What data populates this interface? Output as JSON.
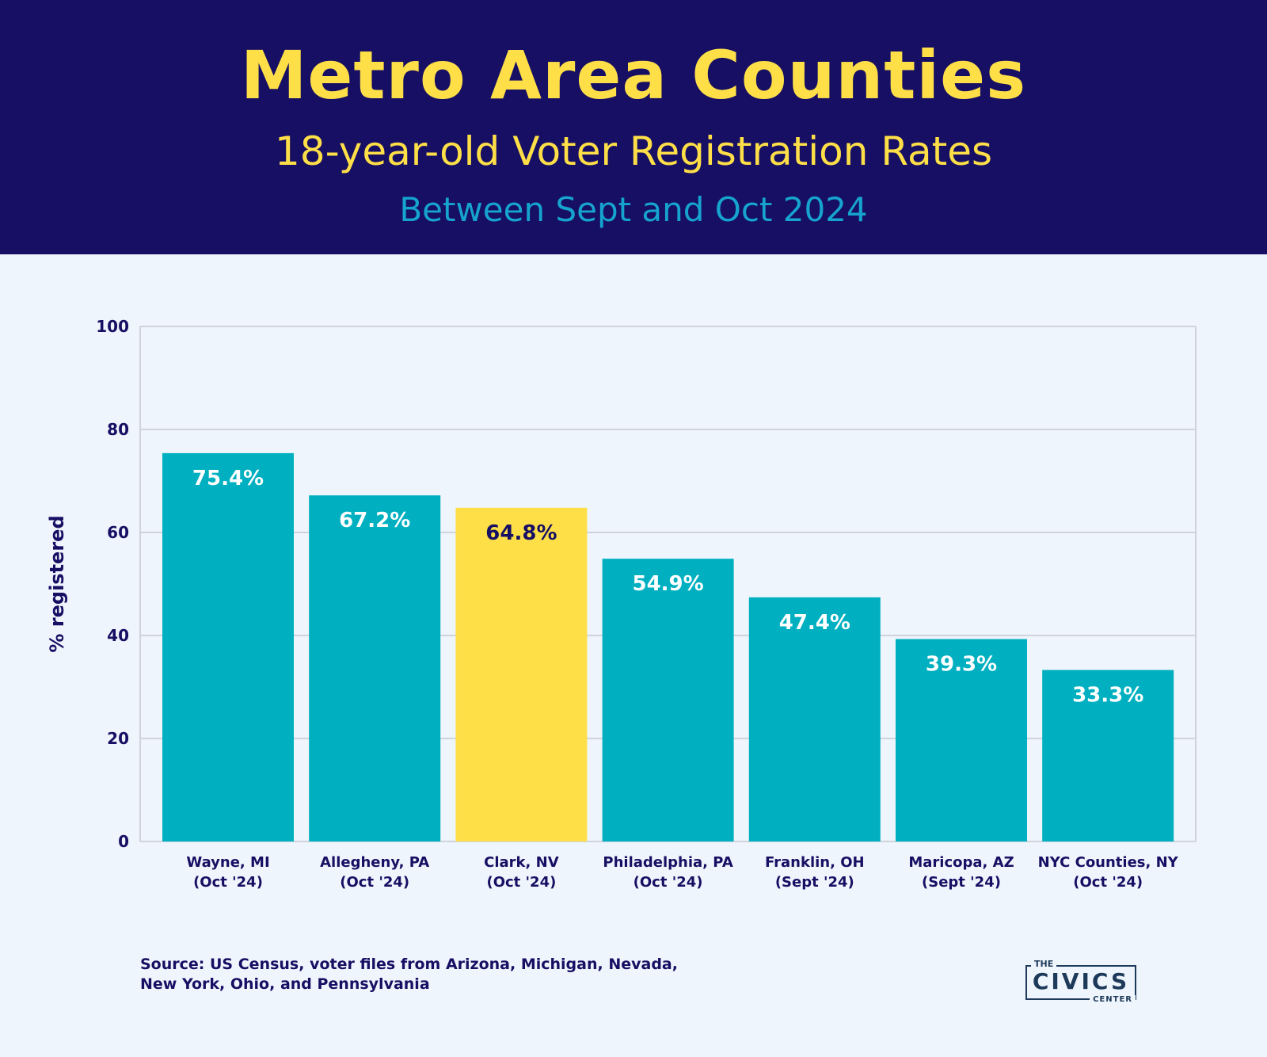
{
  "header": {
    "title": "Metro Area Counties",
    "subtitle": "18-year-old Voter Registration Rates",
    "subsubtitle": "Between Sept and Oct 2024"
  },
  "footer": {
    "source_line1": "Source: US Census, voter files from Arizona, Michigan, Nevada,",
    "source_line2": "New York, Ohio, and Pennsylvania"
  },
  "logo": {
    "the": "THE",
    "civics": "CIVICS",
    "center": "CENTER"
  },
  "colors": {
    "header_bg": "#160f63",
    "title": "#ffdf48",
    "subsubtitle": "#16a4cf",
    "bar": "#00b0c0",
    "bar_highlight": "#ffdf48",
    "page_bg": "#eff5fc",
    "text_dark": "#160f63"
  },
  "chart_data": {
    "type": "bar",
    "title": "Metro Area Counties",
    "ylabel": "% registered",
    "xlabel": "",
    "ylim": [
      0,
      100
    ],
    "yticks": [
      0,
      20,
      40,
      60,
      80,
      100
    ],
    "grid": true,
    "categories": [
      [
        "Wayne, MI",
        "(Oct '24)"
      ],
      [
        "Allegheny, PA",
        "(Oct '24)"
      ],
      [
        "Clark, NV",
        "(Oct '24)"
      ],
      [
        "Philadelphia, PA",
        "(Oct '24)"
      ],
      [
        "Franklin, OH",
        "(Sept '24)"
      ],
      [
        "Maricopa, AZ",
        "(Sept '24)"
      ],
      [
        "NYC Counties, NY",
        "(Oct '24)"
      ]
    ],
    "values": [
      75.4,
      67.2,
      64.8,
      54.9,
      47.4,
      39.3,
      33.3
    ],
    "labels": [
      "75.4%",
      "67.2%",
      "64.8%",
      "54.9%",
      "47.4%",
      "39.3%",
      "33.3%"
    ],
    "highlight_index": 2
  }
}
